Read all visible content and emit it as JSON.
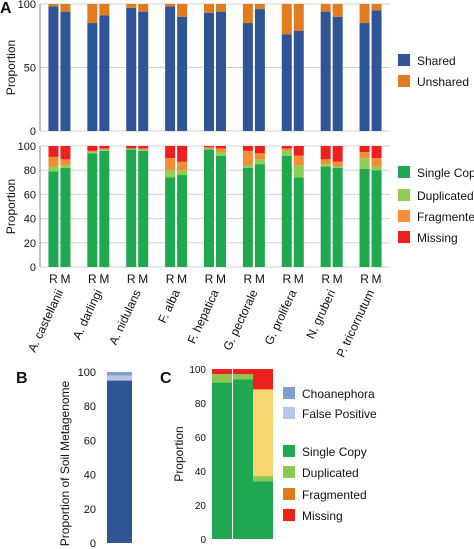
{
  "panel_letters": {
    "a": "A",
    "b": "B",
    "c": "C"
  },
  "colors": {
    "shared": "#2f5597",
    "unshared": "#e07b1f",
    "single": "#1fa84f",
    "duplicated": "#8fce55",
    "fragmented": "#f28e33",
    "missing": "#ee1f1f",
    "falsepos": "#b4c7e7",
    "choanephora": "#7f9fd0",
    "c_duplicated": "#8cc751",
    "c_fragmented": "#f7d870",
    "grid": "#d0d0d0"
  },
  "chart_data": [
    {
      "id": "A-top",
      "type": "bar",
      "stacked": true,
      "ylabel": "Proportion",
      "ylim": [
        0,
        100
      ],
      "yticks": [
        0,
        50,
        100
      ],
      "grid": true,
      "legend_position": "right",
      "categories": [
        "R",
        "M",
        "R",
        "M",
        "R",
        "M",
        "R",
        "M",
        "R",
        "M",
        "R",
        "M",
        "R",
        "M",
        "R",
        "M",
        "R",
        "M"
      ],
      "series": [
        {
          "name": "Shared",
          "color_key": "shared",
          "values": [
            98,
            94,
            85,
            91,
            97,
            94,
            98,
            90,
            93,
            94,
            85,
            96,
            76,
            79,
            94,
            90,
            85,
            95
          ]
        },
        {
          "name": "Unshared",
          "color_key": "unshared",
          "values": [
            2,
            6,
            15,
            9,
            3,
            6,
            2,
            10,
            7,
            6,
            15,
            4,
            24,
            21,
            6,
            10,
            15,
            5
          ]
        }
      ]
    },
    {
      "id": "A-bottom",
      "type": "bar",
      "stacked": true,
      "ylabel": "Proportion",
      "ylim": [
        0,
        100
      ],
      "yticks": [
        0,
        20,
        40,
        60,
        80,
        100
      ],
      "grid": true,
      "legend_position": "right",
      "group_labels": [
        "A. castellanii",
        "A. darlingi",
        "A. nidulans",
        "F. alba",
        "F. hepatica",
        "G. pectorale",
        "G. prolifera",
        "N. gruberi",
        "P. tricornutum"
      ],
      "categories": [
        "R",
        "M",
        "R",
        "M",
        "R",
        "M",
        "R",
        "M",
        "R",
        "M",
        "R",
        "M",
        "R",
        "M",
        "R",
        "M",
        "R",
        "M"
      ],
      "series": [
        {
          "name": "Single Copy",
          "color_key": "single",
          "values": [
            79,
            82,
            94,
            96,
            97,
            96,
            74,
            76,
            97,
            92,
            82,
            85,
            92,
            74,
            83,
            82,
            81,
            80
          ]
        },
        {
          "name": "Duplicated",
          "color_key": "duplicated",
          "values": [
            4,
            2,
            1,
            1,
            1,
            1,
            6,
            4,
            1,
            3,
            2,
            4,
            4,
            10,
            2,
            1,
            9,
            3
          ]
        },
        {
          "name": "Fragmented",
          "color_key": "fragmented",
          "values": [
            8,
            5,
            1,
            1,
            0,
            1,
            10,
            7,
            1,
            3,
            12,
            5,
            2,
            8,
            4,
            4,
            5,
            7
          ]
        },
        {
          "name": "Missing",
          "color_key": "missing",
          "values": [
            9,
            11,
            4,
            2,
            2,
            2,
            10,
            13,
            1,
            2,
            4,
            6,
            2,
            8,
            11,
            13,
            5,
            10
          ]
        }
      ]
    },
    {
      "id": "B",
      "type": "bar",
      "stacked": true,
      "ylabel": "Proportion of Soil Metagenome",
      "ylim": [
        0,
        100
      ],
      "yticks": [
        0,
        20,
        40,
        60,
        80,
        100
      ],
      "grid": false,
      "categories": [
        ""
      ],
      "series": [
        {
          "name": "Shared",
          "color_key": "shared",
          "values": [
            95
          ]
        },
        {
          "name": "False Positive",
          "color_key": "falsepos",
          "values": [
            3
          ]
        },
        {
          "name": "Choanephora",
          "color_key": "choanephora",
          "values": [
            2
          ]
        }
      ]
    },
    {
      "id": "C",
      "type": "bar",
      "stacked": true,
      "ylabel": "Proportion",
      "ylim": [
        0,
        100
      ],
      "yticks": [
        0,
        20,
        40,
        60,
        80,
        100
      ],
      "grid": false,
      "legend_position": "right",
      "categories": [
        "",
        "",
        ""
      ],
      "series": [
        {
          "name": "Single Copy",
          "color_key": "single",
          "values": [
            92,
            94,
            34
          ]
        },
        {
          "name": "Duplicated",
          "color_key": "c_duplicated",
          "values": [
            5,
            3,
            3
          ]
        },
        {
          "name": "Fragmented",
          "color_key": "c_fragmented",
          "values": [
            0,
            0,
            51
          ]
        },
        {
          "name": "Missing",
          "color_key": "missing",
          "values": [
            3,
            3,
            12
          ]
        }
      ],
      "legend": [
        {
          "name": "Choanephora",
          "color_key": "choanephora"
        },
        {
          "name": "False Positive",
          "color_key": "falsepos"
        },
        {
          "name": "Single Copy",
          "color_key": "single"
        },
        {
          "name": "Duplicated",
          "color_key": "c_duplicated"
        },
        {
          "name": "Fragmented",
          "color_key": "unshared"
        },
        {
          "name": "Missing",
          "color_key": "missing"
        }
      ]
    }
  ]
}
